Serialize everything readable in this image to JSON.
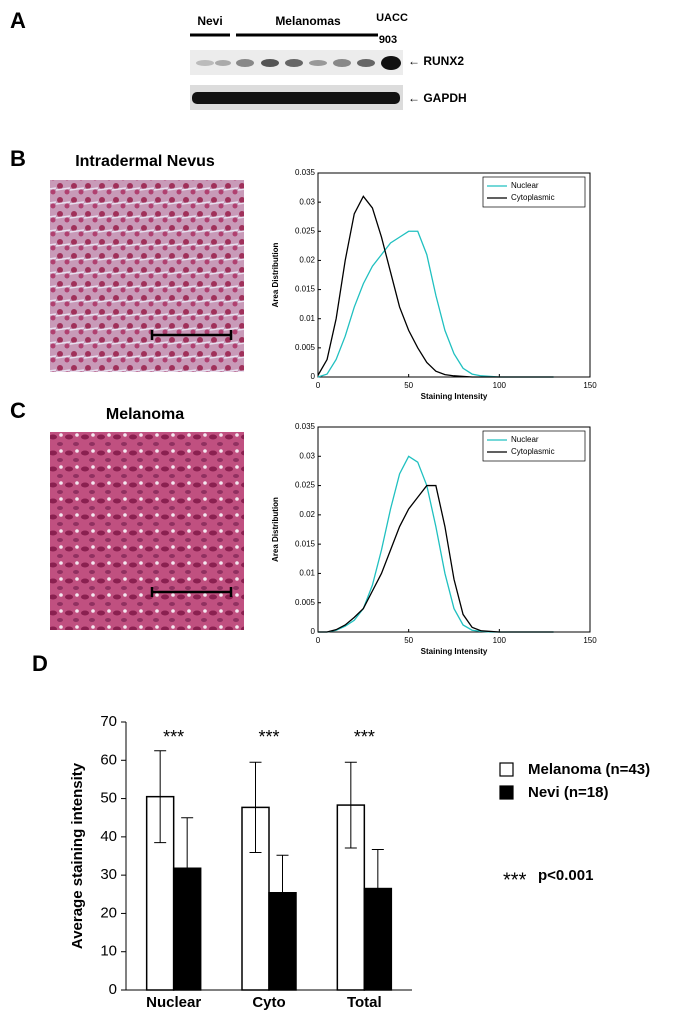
{
  "panels": [
    {
      "letter": "A"
    },
    {
      "letter": "B",
      "title": "Intradermal Nevus"
    },
    {
      "letter": "C",
      "title": "Melanoma"
    },
    {
      "letter": "D"
    }
  ],
  "blot": {
    "groups": [
      "Nevi",
      "Melanomas"
    ],
    "cell_line": [
      "UACC",
      "903"
    ],
    "bands": [
      "← RUNX2",
      "← GAPDH"
    ]
  },
  "chart_data": [
    {
      "type": "line",
      "xlabel": "Staining Intensity",
      "ylabel": "Area Distribution",
      "x": [
        0,
        5,
        10,
        15,
        20,
        25,
        30,
        35,
        40,
        45,
        50,
        55,
        60,
        65,
        70,
        75,
        80,
        85,
        90,
        95,
        100,
        105,
        110,
        115,
        120,
        125,
        130
      ],
      "series": [
        {
          "name": "Nuclear",
          "color": "#20c0c0",
          "values": [
            0,
            0.0005,
            0.003,
            0.007,
            0.012,
            0.016,
            0.019,
            0.021,
            0.023,
            0.024,
            0.025,
            0.025,
            0.021,
            0.014,
            0.008,
            0.004,
            0.0015,
            0.0005,
            0.0002,
            0.0001,
            0,
            0,
            0,
            0,
            0,
            0,
            0
          ]
        },
        {
          "name": "Cytoplasmic",
          "color": "#000000",
          "values": [
            0.0003,
            0.003,
            0.01,
            0.02,
            0.028,
            0.031,
            0.029,
            0.024,
            0.018,
            0.012,
            0.008,
            0.005,
            0.0025,
            0.001,
            0.0004,
            0.0002,
            0.0001,
            0,
            0,
            0,
            0,
            0,
            0,
            0,
            0,
            0,
            0
          ]
        }
      ],
      "xlim": [
        0,
        150
      ],
      "xticks": [
        0,
        50,
        100,
        150
      ],
      "ylim": [
        0,
        0.035
      ],
      "yticks": [
        0,
        0.005,
        0.01,
        0.015,
        0.02,
        0.025,
        0.03,
        0.035
      ],
      "legend": "upper right"
    },
    {
      "type": "line",
      "xlabel": "Staining Intensity",
      "ylabel": "Area Distribution",
      "x": [
        0,
        5,
        10,
        15,
        20,
        25,
        30,
        35,
        40,
        45,
        50,
        55,
        60,
        65,
        70,
        75,
        80,
        85,
        90,
        95,
        100,
        105,
        110,
        115,
        120,
        125,
        130
      ],
      "series": [
        {
          "name": "Nuclear",
          "color": "#20c0c0",
          "values": [
            0,
            0,
            0.0003,
            0.001,
            0.002,
            0.004,
            0.008,
            0.014,
            0.021,
            0.027,
            0.03,
            0.029,
            0.025,
            0.018,
            0.01,
            0.004,
            0.0012,
            0.0003,
            0.0001,
            0,
            0,
            0,
            0,
            0,
            0,
            0,
            0
          ]
        },
        {
          "name": "Cytoplasmic",
          "color": "#000000",
          "values": [
            0,
            0,
            0.0004,
            0.0012,
            0.0025,
            0.004,
            0.007,
            0.01,
            0.014,
            0.018,
            0.021,
            0.023,
            0.025,
            0.025,
            0.018,
            0.009,
            0.003,
            0.0008,
            0.0002,
            0.0001,
            0,
            0,
            0,
            0,
            0,
            0,
            0
          ]
        }
      ],
      "xlim": [
        0,
        150
      ],
      "xticks": [
        0,
        50,
        100,
        150
      ],
      "ylim": [
        0,
        0.035
      ],
      "yticks": [
        0,
        0.005,
        0.01,
        0.015,
        0.02,
        0.025,
        0.03,
        0.035
      ],
      "legend": "upper right"
    },
    {
      "type": "bar",
      "ylabel": "Average staining intensity",
      "categories": [
        "Nuclear",
        "Cyto",
        "Total"
      ],
      "series": [
        {
          "name": "Melanoma (n=43)",
          "color": "#ffffff",
          "values": [
            50.5,
            47.7,
            48.3
          ],
          "errors": [
            12,
            11.8,
            11.2
          ]
        },
        {
          "name": "Nevi (n=18)",
          "color": "#000000",
          "values": [
            31.8,
            25.4,
            26.5
          ],
          "errors": [
            13.2,
            9.8,
            10.2
          ]
        }
      ],
      "annotations": [
        "***",
        "***",
        "***"
      ],
      "significance": {
        "marker": "***",
        "label": "p<0.001"
      },
      "ylim": [
        0,
        70
      ],
      "yticks": [
        0,
        10,
        20,
        30,
        40,
        50,
        60,
        70
      ],
      "legend": "right"
    }
  ]
}
